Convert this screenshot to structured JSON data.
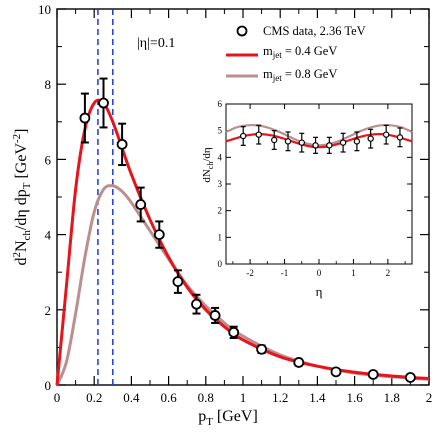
{
  "chart_data": {
    "type": "scatter",
    "xlabel_main": "p",
    "xlabel_sub": "T",
    "xlabel_unit": " [GeV]",
    "ylabel_main": "d",
    "ylabel_sup2": "2",
    "ylabel_N": "N",
    "ylabel_ch": "ch",
    "ylabel_mid": "/dη dp",
    "ylabel_T": "T",
    "ylabel_unit": " [GeV",
    "ylabel_exp": "-2",
    "ylabel_close": "]",
    "annotation": "|η|=0.1",
    "xlim": [
      0,
      2
    ],
    "ylim": [
      0,
      10
    ],
    "xticks": [
      "0",
      "0.2",
      "0.4",
      "0.6",
      "0.8",
      "1",
      "1.2",
      "1.4",
      "1.6",
      "1.8",
      "2"
    ],
    "yticks": [
      "0",
      "2",
      "4",
      "6",
      "8",
      "10"
    ],
    "vlines": [
      0.22,
      0.3
    ],
    "legend": {
      "placement": "top-right",
      "data_label": "CMS data, 2.36 TeV",
      "series1_m": "m",
      "series1_sub": "jet",
      "series1_rest": " = 0.4 GeV",
      "series2_m": "m",
      "series2_sub": "jet",
      "series2_rest": " = 0.8 GeV"
    },
    "data_points": [
      {
        "x": 0.15,
        "y": 7.1,
        "err": 0.65
      },
      {
        "x": 0.25,
        "y": 7.5,
        "err": 0.65
      },
      {
        "x": 0.35,
        "y": 6.4,
        "err": 0.55
      },
      {
        "x": 0.45,
        "y": 4.8,
        "err": 0.45
      },
      {
        "x": 0.55,
        "y": 4.0,
        "err": 0.35
      },
      {
        "x": 0.65,
        "y": 2.75,
        "err": 0.3
      },
      {
        "x": 0.75,
        "y": 2.15,
        "err": 0.25
      },
      {
        "x": 0.85,
        "y": 1.85,
        "err": 0.2
      },
      {
        "x": 0.95,
        "y": 1.4,
        "err": 0.15
      },
      {
        "x": 1.1,
        "y": 0.95,
        "err": 0.1
      },
      {
        "x": 1.3,
        "y": 0.6,
        "err": 0.08
      },
      {
        "x": 1.5,
        "y": 0.35,
        "err": 0.06
      },
      {
        "x": 1.7,
        "y": 0.28,
        "err": 0.05
      },
      {
        "x": 1.9,
        "y": 0.2,
        "err": 0.04
      }
    ],
    "series": [
      {
        "name": "m_jet = 0.4 GeV",
        "color": "#e8141c",
        "x": [
          0,
          0.05,
          0.1,
          0.15,
          0.2,
          0.25,
          0.3,
          0.35,
          0.4,
          0.5,
          0.6,
          0.7,
          0.8,
          0.9,
          1.0,
          1.2,
          1.4,
          1.6,
          1.8,
          2.0
        ],
        "y": [
          0,
          2.6,
          5.2,
          6.8,
          7.5,
          7.5,
          7.0,
          6.3,
          5.6,
          4.4,
          3.4,
          2.6,
          2.0,
          1.55,
          1.2,
          0.75,
          0.5,
          0.34,
          0.24,
          0.17
        ]
      },
      {
        "name": "m_jet = 0.8 GeV",
        "color": "#bc8f8f",
        "x": [
          0,
          0.05,
          0.1,
          0.15,
          0.2,
          0.25,
          0.3,
          0.35,
          0.4,
          0.5,
          0.6,
          0.7,
          0.8,
          0.9,
          1.0,
          1.2,
          1.4,
          1.6,
          1.8,
          2.0
        ],
        "y": [
          0,
          0.6,
          1.9,
          3.4,
          4.6,
          5.2,
          5.3,
          5.15,
          4.85,
          4.1,
          3.35,
          2.65,
          2.1,
          1.65,
          1.3,
          0.8,
          0.5,
          0.32,
          0.22,
          0.15
        ]
      }
    ],
    "inset": {
      "ylabel_main": "dN",
      "ylabel_sub": "ch",
      "ylabel_rest": "/dη",
      "xlabel": "η",
      "xlim": [
        -2.7,
        2.7
      ],
      "ylim": [
        0,
        6
      ],
      "xticks": [
        "-2",
        "-1",
        "0",
        "1",
        "2"
      ],
      "yticks": [
        "0",
        "1",
        "2",
        "3",
        "4",
        "5",
        "6"
      ],
      "data_points": [
        {
          "x": -2.2,
          "y": 4.8,
          "err": 0.35
        },
        {
          "x": -1.75,
          "y": 4.85,
          "err": 0.35
        },
        {
          "x": -1.3,
          "y": 4.65,
          "err": 0.35
        },
        {
          "x": -0.9,
          "y": 4.6,
          "err": 0.35
        },
        {
          "x": -0.5,
          "y": 4.55,
          "err": 0.35
        },
        {
          "x": -0.1,
          "y": 4.45,
          "err": 0.3
        },
        {
          "x": 0.3,
          "y": 4.45,
          "err": 0.3
        },
        {
          "x": 0.7,
          "y": 4.55,
          "err": 0.35
        },
        {
          "x": 1.1,
          "y": 4.6,
          "err": 0.35
        },
        {
          "x": 1.5,
          "y": 4.7,
          "err": 0.35
        },
        {
          "x": 1.95,
          "y": 4.85,
          "err": 0.35
        },
        {
          "x": 2.35,
          "y": 4.75,
          "err": 0.35
        }
      ],
      "series": [
        {
          "name": "m_jet = 0.4 GeV",
          "color": "#e8141c",
          "x": [
            -2.7,
            -2.4,
            -2.1,
            -1.8,
            -1.5,
            -1.2,
            -0.9,
            -0.6,
            -0.3,
            0,
            0.3,
            0.6,
            0.9,
            1.2,
            1.5,
            1.8,
            2.1,
            2.4,
            2.7
          ],
          "y": [
            4.6,
            4.72,
            4.82,
            4.87,
            4.85,
            4.77,
            4.65,
            4.52,
            4.42,
            4.38,
            4.42,
            4.52,
            4.65,
            4.77,
            4.85,
            4.87,
            4.82,
            4.72,
            4.6
          ]
        },
        {
          "name": "m_jet = 0.8 GeV",
          "color": "#bc8f8f",
          "x": [
            -2.7,
            -2.4,
            -2.1,
            -1.8,
            -1.5,
            -1.2,
            -0.9,
            -0.6,
            -0.3,
            0,
            0.3,
            0.6,
            0.9,
            1.2,
            1.5,
            1.8,
            2.1,
            2.4,
            2.7
          ],
          "y": [
            4.95,
            5.12,
            5.2,
            5.2,
            5.12,
            4.98,
            4.8,
            4.62,
            4.5,
            4.45,
            4.5,
            4.62,
            4.8,
            4.98,
            5.12,
            5.2,
            5.2,
            5.12,
            4.95
          ]
        }
      ]
    }
  }
}
